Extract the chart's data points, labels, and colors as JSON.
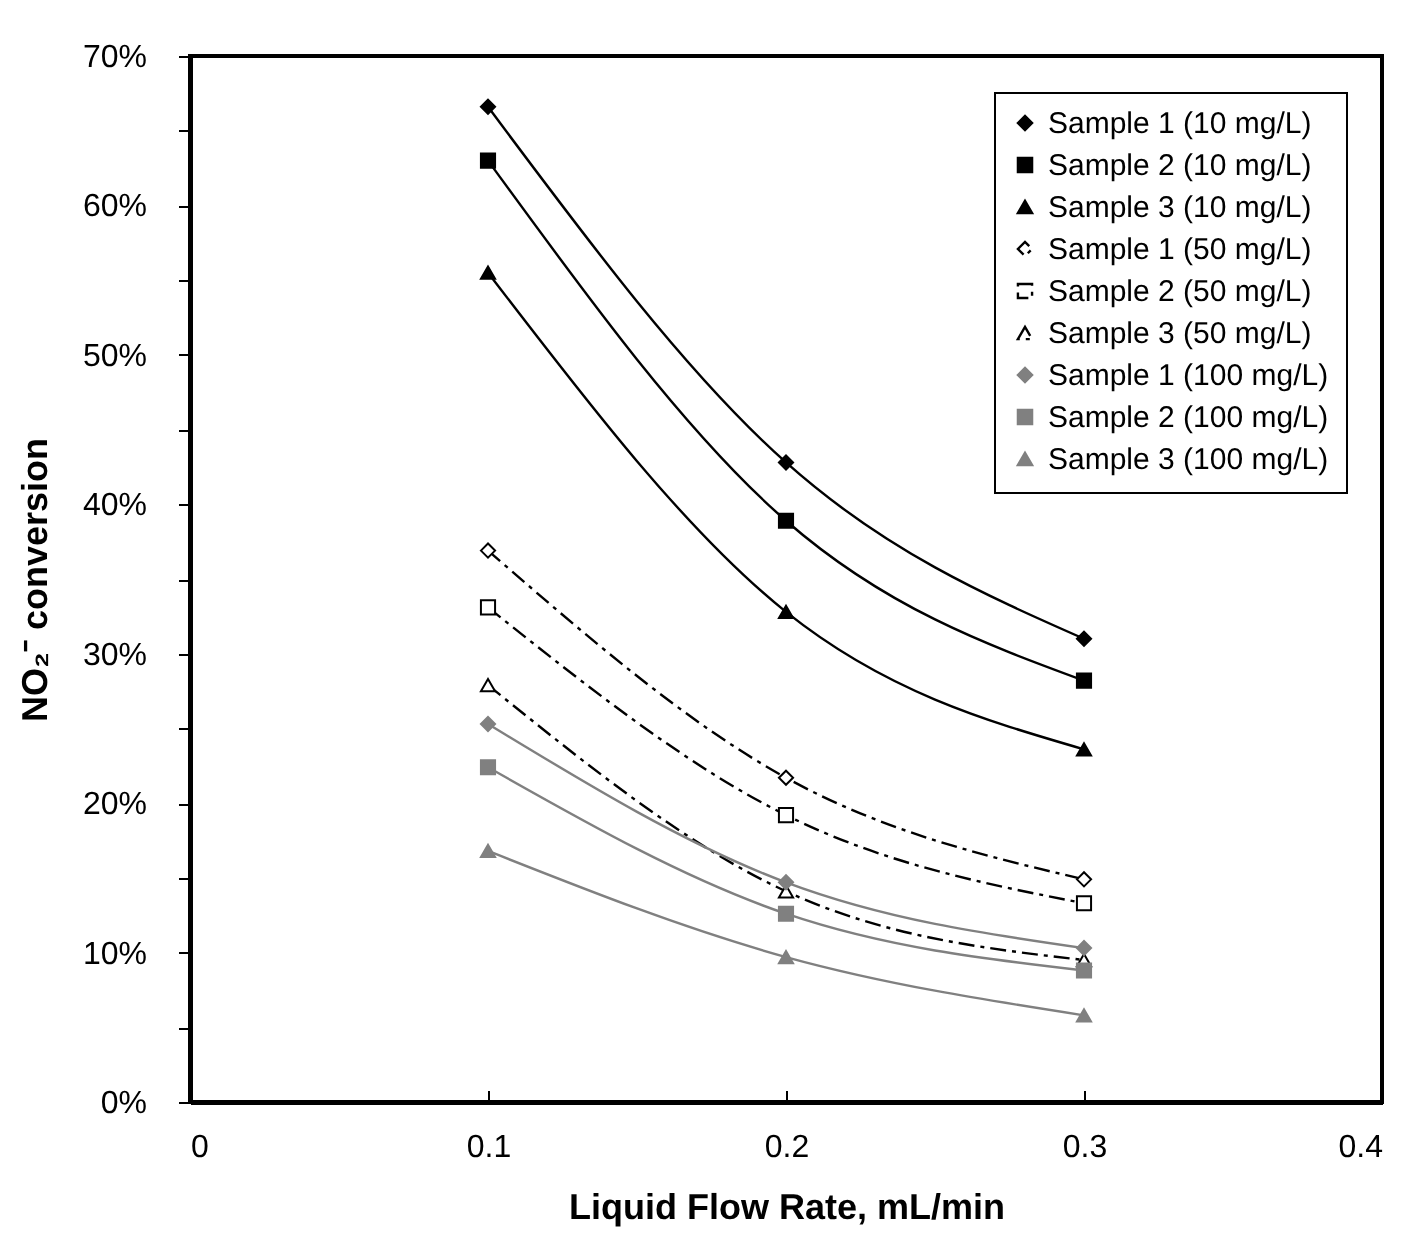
{
  "chart_data": {
    "type": "line",
    "xlabel": "Liquid Flow Rate, mL/min",
    "ylabel": "NO₂⁻ conversion",
    "x": [
      0.1,
      0.2,
      0.3
    ],
    "series": [
      {
        "name": "Sample 1 (10 mg/L)",
        "color": "#000000",
        "marker": "diamond",
        "line_style": "solid",
        "values": [
          66.6,
          42.8,
          31.0
        ]
      },
      {
        "name": "Sample 2 (10 mg/L)",
        "color": "#000000",
        "marker": "square",
        "line_style": "solid",
        "values": [
          63.0,
          38.9,
          28.2
        ]
      },
      {
        "name": "Sample 3 (10 mg/L)",
        "color": "#000000",
        "marker": "triangle",
        "line_style": "solid",
        "values": [
          55.5,
          32.8,
          23.6
        ]
      },
      {
        "name": "Sample 1 (50 mg/L)",
        "color": "#000000",
        "marker": "diamond",
        "line_style": "dashed",
        "values": [
          36.9,
          21.7,
          14.9
        ]
      },
      {
        "name": "Sample 2 (50 mg/L)",
        "color": "#000000",
        "marker": "square",
        "line_style": "dashed",
        "values": [
          33.1,
          19.2,
          13.3
        ]
      },
      {
        "name": "Sample 3 (50 mg/L)",
        "color": "#000000",
        "marker": "triangle",
        "line_style": "dashed",
        "values": [
          27.9,
          14.1,
          9.5
        ]
      },
      {
        "name": "Sample 1 (100 mg/L)",
        "color": "#808080",
        "marker": "diamond",
        "line_style": "solid",
        "values": [
          25.3,
          14.7,
          10.3
        ]
      },
      {
        "name": "Sample 2 (100 mg/L)",
        "color": "#808080",
        "marker": "square",
        "line_style": "solid",
        "values": [
          22.4,
          12.6,
          8.8
        ]
      },
      {
        "name": "Sample 3 (100 mg/L)",
        "color": "#808080",
        "marker": "triangle",
        "line_style": "solid",
        "values": [
          16.8,
          9.7,
          5.8
        ]
      }
    ],
    "xlim": [
      0,
      0.4
    ],
    "xticks": [
      0,
      0.1,
      0.2,
      0.3,
      0.4
    ],
    "ylim": [
      0,
      70
    ],
    "yticks": [
      {
        "value": 0,
        "label": "0%"
      },
      {
        "value": 5,
        "label": null
      },
      {
        "value": 10,
        "label": "10%"
      },
      {
        "value": 15,
        "label": null
      },
      {
        "value": 20,
        "label": "20%"
      },
      {
        "value": 25,
        "label": null
      },
      {
        "value": 30,
        "label": "30%"
      },
      {
        "value": 35,
        "label": null
      },
      {
        "value": 40,
        "label": "40%"
      },
      {
        "value": 45,
        "label": null
      },
      {
        "value": 50,
        "label": "50%"
      },
      {
        "value": 55,
        "label": null
      },
      {
        "value": 60,
        "label": "60%"
      },
      {
        "value": 65,
        "label": null
      },
      {
        "value": 70,
        "label": "70%"
      }
    ],
    "grid": false,
    "legend": "top right"
  }
}
